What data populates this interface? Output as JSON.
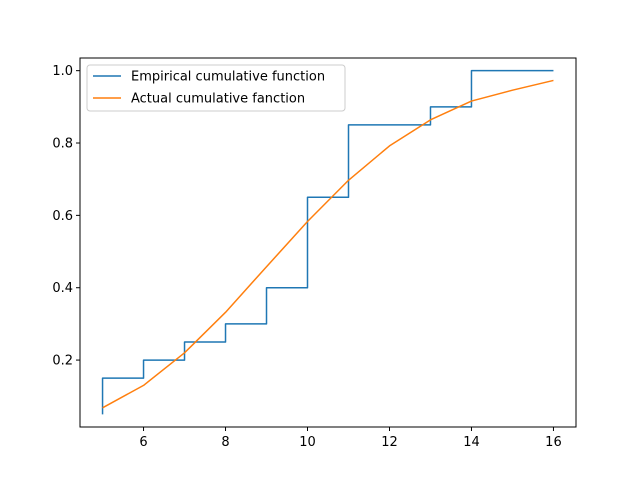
{
  "chart_data": {
    "type": "line",
    "title": "",
    "xlabel": "",
    "ylabel": "",
    "xlim": [
      4.45,
      16.55
    ],
    "ylim": [
      0.015,
      1.035
    ],
    "x_ticks": [
      6,
      8,
      10,
      12,
      14,
      16
    ],
    "y_ticks": [
      0.2,
      0.4,
      0.6,
      0.8,
      1.0
    ],
    "x_tick_labels": [
      "6",
      "8",
      "10",
      "12",
      "14",
      "16"
    ],
    "y_tick_labels": [
      "0.2",
      "0.4",
      "0.6",
      "0.8",
      "1.0"
    ],
    "grid": false,
    "legend_position": "top-left",
    "series": [
      {
        "name": "Empirical cumulative function",
        "style": "step",
        "color": "#1f77b4",
        "x": [
          5,
          5,
          6,
          6,
          7,
          7,
          8,
          8,
          9,
          9,
          10,
          10,
          11,
          11,
          13,
          13,
          14,
          14,
          16
        ],
        "y": [
          0.05,
          0.15,
          0.15,
          0.2,
          0.2,
          0.25,
          0.25,
          0.3,
          0.3,
          0.4,
          0.4,
          0.65,
          0.65,
          0.85,
          0.85,
          0.9,
          0.9,
          1.0,
          1.0
        ]
      },
      {
        "name": "Actual cumulative fanction",
        "style": "line",
        "color": "#ff7f0e",
        "x": [
          5,
          6,
          7,
          8,
          9,
          10,
          11,
          12,
          13,
          14,
          15,
          16
        ],
        "y": [
          0.068,
          0.13,
          0.22,
          0.332,
          0.458,
          0.583,
          0.697,
          0.792,
          0.864,
          0.916,
          0.946,
          0.973
        ]
      }
    ]
  }
}
